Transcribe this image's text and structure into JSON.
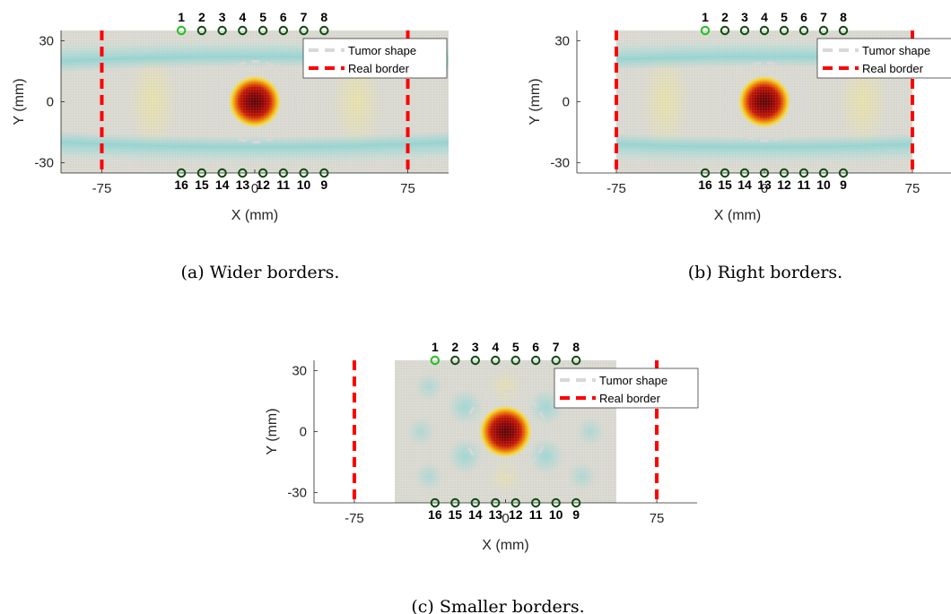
{
  "chart_data": [
    {
      "type": "heatmap",
      "caption": "(a) Wider borders.",
      "xlabel": "X (mm)",
      "ylabel": "Y (mm)",
      "xlim": [
        -95,
        95
      ],
      "ylim": [
        -35,
        35
      ],
      "image_extent_x": [
        -95,
        95
      ],
      "image_extent_y": [
        -35,
        35
      ],
      "xticks": [
        -75,
        0,
        75
      ],
      "yticks": [
        -30,
        0,
        30
      ],
      "pattern": "ring",
      "tumor": {
        "x": 0,
        "y": 0,
        "r": 6
      },
      "real_border_x": [
        -75,
        75
      ],
      "electrodes_top": {
        "labels": [
          "1",
          "2",
          "3",
          "4",
          "5",
          "6",
          "7",
          "8"
        ],
        "x": [
          -36,
          -26,
          -16,
          -6,
          4,
          14,
          24,
          34
        ],
        "y": 35
      },
      "electrodes_bottom": {
        "labels": [
          "16",
          "15",
          "14",
          "13",
          "12",
          "11",
          "10",
          "9"
        ],
        "x": [
          -36,
          -26,
          -16,
          -6,
          4,
          14,
          24,
          34
        ],
        "y": -35
      },
      "legend": [
        "Tumor shape",
        "Real border"
      ]
    },
    {
      "type": "heatmap",
      "caption": "(b) Right borders.",
      "xlabel": "X (mm)",
      "ylabel": "Y (mm)",
      "xlim": [
        -95,
        95
      ],
      "ylim": [
        -35,
        35
      ],
      "image_extent_x": [
        -75,
        75
      ],
      "image_extent_y": [
        -35,
        35
      ],
      "xticks": [
        -75,
        0,
        75
      ],
      "yticks": [
        -30,
        0,
        30
      ],
      "pattern": "ring",
      "tumor": {
        "x": 0,
        "y": 0,
        "r": 6
      },
      "real_border_x": [
        -75,
        75
      ],
      "electrodes_top": {
        "labels": [
          "1",
          "2",
          "3",
          "4",
          "5",
          "6",
          "7",
          "8"
        ],
        "x": [
          -30,
          -20,
          -10,
          0,
          10,
          20,
          30,
          40
        ],
        "y": 35
      },
      "electrodes_bottom": {
        "labels": [
          "16",
          "15",
          "14",
          "13",
          "12",
          "11",
          "10",
          "9"
        ],
        "x": [
          -30,
          -20,
          -10,
          0,
          10,
          20,
          30,
          40
        ],
        "y": -35
      },
      "legend": [
        "Tumor shape",
        "Real border"
      ]
    },
    {
      "type": "heatmap",
      "caption": "(c) Smaller borders.",
      "xlabel": "X (mm)",
      "ylabel": "Y (mm)",
      "xlim": [
        -95,
        95
      ],
      "ylim": [
        -35,
        35
      ],
      "image_extent_x": [
        -55,
        55
      ],
      "image_extent_y": [
        -35,
        35
      ],
      "xticks": [
        -75,
        0,
        75
      ],
      "yticks": [
        -30,
        0,
        30
      ],
      "pattern": "lobes",
      "tumor": {
        "x": 0,
        "y": 0,
        "r": 6
      },
      "real_border_x": [
        -75,
        75
      ],
      "electrodes_top": {
        "labels": [
          "1",
          "2",
          "3",
          "4",
          "5",
          "6",
          "7",
          "8"
        ],
        "x": [
          -35,
          -25,
          -15,
          -5,
          5,
          15,
          25,
          35
        ],
        "y": 35
      },
      "electrodes_bottom": {
        "labels": [
          "16",
          "15",
          "14",
          "13",
          "12",
          "11",
          "10",
          "9"
        ],
        "x": [
          -35,
          -25,
          -15,
          -5,
          5,
          15,
          25,
          35
        ],
        "y": -35
      },
      "legend": [
        "Tumor shape",
        "Real border"
      ]
    }
  ]
}
